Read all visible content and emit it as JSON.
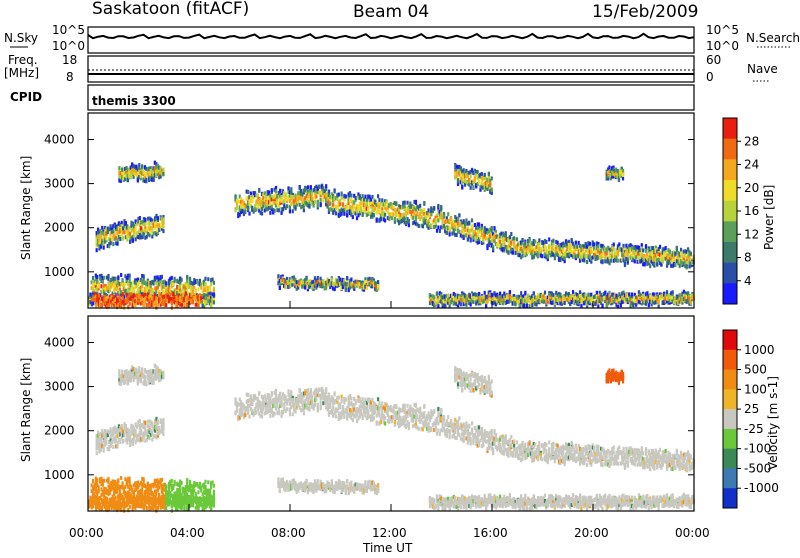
{
  "header": {
    "station": "Saskatoon (fitACF)",
    "beam": "Beam 04",
    "date": "15/Feb/2009"
  },
  "top_panels": {
    "nsky_label": "N.Sky",
    "nsky_ticks": [
      "10^5",
      "10^0"
    ],
    "nsky_right_ticks": [
      "10^5",
      "10^0"
    ],
    "nsearch_label": "N.Search",
    "freq_label_1": "Freq.",
    "freq_label_2": "[MHz]",
    "freq_ticks": [
      "18",
      "8"
    ],
    "nave_ticks": [
      "60",
      "0"
    ],
    "nave_label": "Nave",
    "cpid_label": "CPID",
    "cpid_value": "themis 3300"
  },
  "colors": {
    "power_scale": [
      "#1a1aff",
      "#2a4fa8",
      "#3c7a6a",
      "#5aa05a",
      "#b8d23c",
      "#f0dc28",
      "#f5a81e",
      "#f06a14",
      "#e81e0e"
    ],
    "velocity_scale": [
      "#1030c8",
      "#3c7ab4",
      "#3a8a58",
      "#6ac83a",
      "#c8c8c0",
      "#f0b428",
      "#f08c14",
      "#f05a0a",
      "#e00a0a"
    ]
  },
  "chart_data": [
    {
      "type": "heatmap",
      "name": "power",
      "ylabel": "Slant Range [km]",
      "xlabel": "",
      "ylim": [
        180,
        4600
      ],
      "yticks": [
        "4000",
        "3000",
        "2000",
        "1000"
      ],
      "colorbar_label": "Power [dB]",
      "colorbar_ticks": [
        "28",
        "24",
        "20",
        "16",
        "12",
        "8",
        "4"
      ],
      "colorbar_range": [
        0,
        32
      ],
      "bands": [
        {
          "t0": 0.3,
          "t1": 3.0,
          "r0": 1400,
          "r1": 2300,
          "level": "mid"
        },
        {
          "t0": 0.1,
          "t1": 5.0,
          "r0": 300,
          "r1": 950,
          "level": "high"
        },
        {
          "t0": 5.8,
          "t1": 14.0,
          "r0": 1800,
          "r1": 3000,
          "level": "mid"
        },
        {
          "t0": 14.0,
          "t1": 24.0,
          "r0": 1000,
          "r1": 2200,
          "level": "high"
        },
        {
          "t0": 20.5,
          "t1": 21.0,
          "r0": 3100,
          "r1": 3300,
          "level": "mid"
        }
      ]
    },
    {
      "type": "heatmap",
      "name": "velocity",
      "ylabel": "Slant Range [km]",
      "xlabel": "Time UT",
      "ylim": [
        180,
        4600
      ],
      "yticks": [
        "4000",
        "3000",
        "2000",
        "1000"
      ],
      "colorbar_label": "Velocity [m s-1]",
      "colorbar_ticks": [
        "1000",
        "500",
        "100",
        "25",
        "-25",
        "-100",
        "-500",
        "-1000"
      ],
      "colorbar_range": [
        -1000,
        1000
      ],
      "xticks": [
        "00:00",
        "04:00",
        "08:00",
        "12:00",
        "16:00",
        "20:00",
        "00:00"
      ],
      "xlim": [
        0,
        24
      ]
    }
  ]
}
